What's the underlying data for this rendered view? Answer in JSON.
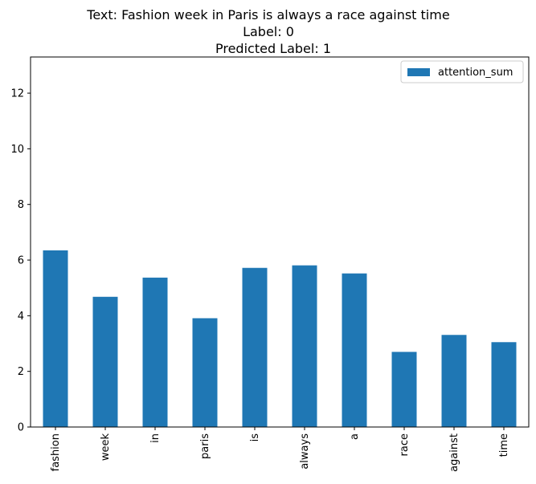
{
  "chart_data": {
    "type": "bar",
    "title_lines": [
      "Text: Fashion week in Paris is always a race against time",
      "Label: 0",
      "Predicted Label: 1"
    ],
    "xlabel": "",
    "ylabel": "",
    "categories": [
      "fashion",
      "week",
      "in",
      "paris",
      "is",
      "always",
      "a",
      "race",
      "against",
      "time"
    ],
    "series": [
      {
        "name": "attention_sum",
        "color": "#1f77b4",
        "values": [
          6.35,
          4.68,
          5.37,
          3.91,
          5.72,
          5.81,
          5.52,
          2.7,
          3.31,
          3.05
        ]
      }
    ],
    "ylim": [
      0,
      13.3
    ],
    "yticks": [
      0,
      2,
      4,
      6,
      8,
      10,
      12
    ],
    "grid": false,
    "legend_position": "top-right"
  }
}
